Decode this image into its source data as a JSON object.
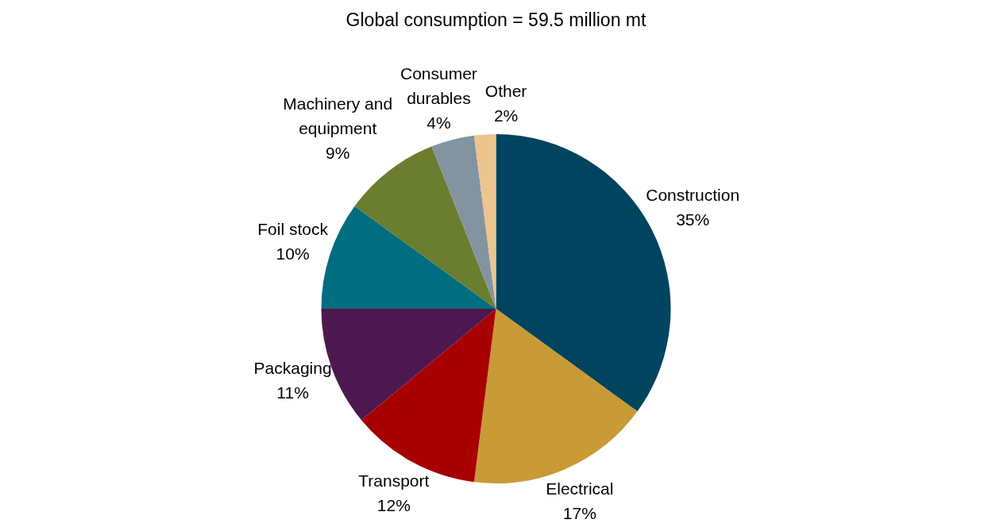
{
  "chart_data": {
    "type": "pie",
    "title": "Global consumption = 59.5 million mt",
    "categories": [
      "Construction",
      "Electrical",
      "Transport",
      "Packaging",
      "Foil stock",
      "Machinery and equipment",
      "Consumer durables",
      "Other"
    ],
    "values": [
      35,
      17,
      12,
      11,
      10,
      9,
      4,
      2
    ],
    "colors": [
      "#00445f",
      "#c99a35",
      "#a80000",
      "#4d1850",
      "#006e80",
      "#6b7e2f",
      "#8394a1",
      "#ecc48e"
    ],
    "value_labels": [
      "35%",
      "17%",
      "12%",
      "11%",
      "10%",
      "9%",
      "4%",
      "2%"
    ],
    "legend": false
  }
}
